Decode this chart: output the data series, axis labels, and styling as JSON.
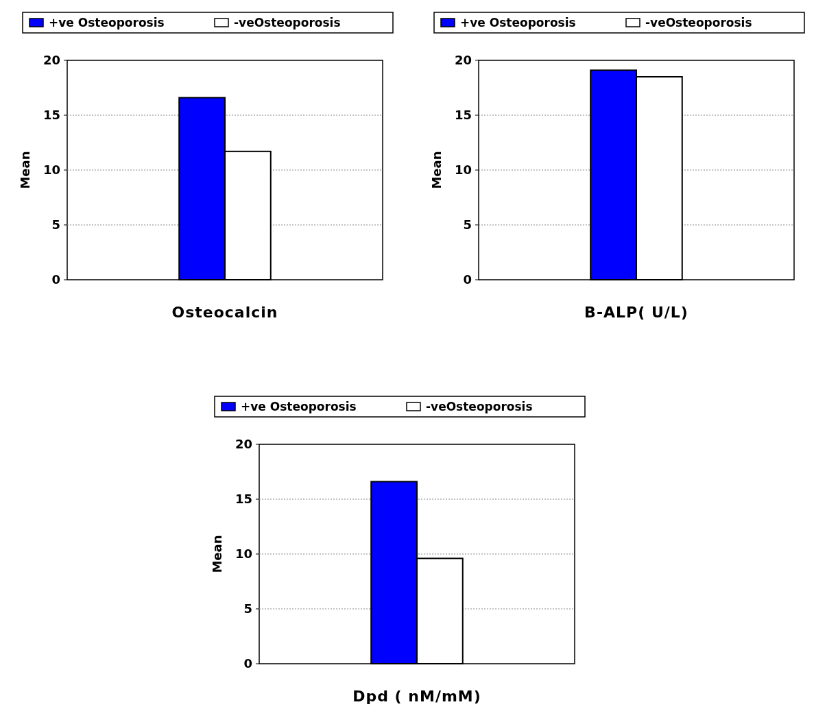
{
  "chart_data": [
    {
      "type": "bar",
      "xlabel": "Osteocalcin",
      "ylabel": "Mean",
      "categories": [
        null
      ],
      "series": [
        {
          "name": "+ve Osteoporosis",
          "color": "#0000ff",
          "values": [
            16.6
          ]
        },
        {
          "name": "-veOsteoporosis",
          "color": "#ffffff",
          "values": [
            11.7
          ]
        }
      ],
      "ylim": [
        0,
        20
      ],
      "yticks": [
        0,
        5,
        10,
        15,
        20
      ],
      "grid": "y",
      "legend": "top"
    },
    {
      "type": "bar",
      "xlabel": "B-ALP( U/L)",
      "ylabel": "Mean",
      "categories": [
        null
      ],
      "series": [
        {
          "name": "+ve Osteoporosis",
          "color": "#0000ff",
          "values": [
            19.1
          ]
        },
        {
          "name": "-veOsteoporosis",
          "color": "#ffffff",
          "values": [
            18.5
          ]
        }
      ],
      "ylim": [
        0,
        20
      ],
      "yticks": [
        0,
        5,
        10,
        15,
        20
      ],
      "grid": "y",
      "legend": "top"
    },
    {
      "type": "bar",
      "xlabel": "Dpd ( nM/mM)",
      "ylabel": "Mean",
      "categories": [
        null
      ],
      "series": [
        {
          "name": "+ve Osteoporosis",
          "color": "#0000ff",
          "values": [
            16.6
          ]
        },
        {
          "name": "-veOsteoporosis",
          "color": "#ffffff",
          "values": [
            9.6
          ]
        }
      ],
      "ylim": [
        0,
        20
      ],
      "yticks": [
        0,
        5,
        10,
        15,
        20
      ],
      "grid": "y",
      "legend": "top"
    }
  ]
}
